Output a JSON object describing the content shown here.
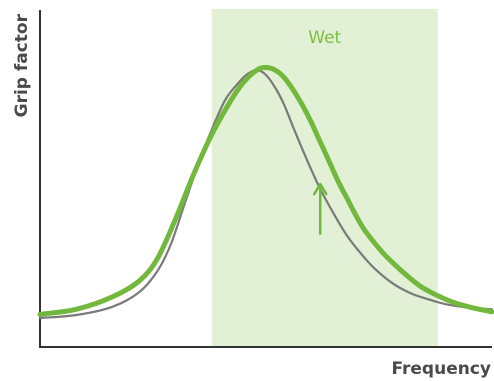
{
  "chart_data": {
    "type": "line",
    "title": "",
    "xlabel": "Frequency",
    "ylabel": "Grip factor",
    "xlim": [
      0,
      100
    ],
    "ylim": [
      0,
      100
    ],
    "grid": false,
    "legend": "none",
    "shaded_region": {
      "label": "Wet",
      "x_start": 38,
      "x_end": 88,
      "color": "#e2f0d6",
      "label_color": "#7cbf3f"
    },
    "series": [
      {
        "color": "#7a7a7a",
        "emphasis": "thin",
        "x": [
          0,
          8,
          16,
          22,
          26,
          29,
          32,
          35,
          38,
          41,
          44,
          46,
          48,
          50,
          52,
          54,
          56,
          59,
          62,
          65,
          68,
          71,
          74,
          78,
          82,
          86,
          90,
          95,
          100
        ],
        "y": [
          0,
          1.2,
          4.5,
          10.5,
          19,
          30,
          46,
          62,
          76,
          88,
          95,
          98.5,
          100,
          98,
          93,
          86,
          77,
          64,
          52,
          42,
          33,
          26,
          20,
          14,
          10,
          7.5,
          5.5,
          4.2,
          3.5
        ]
      },
      {
        "color": "#72b83d",
        "emphasis": "bold",
        "x": [
          0,
          8,
          16,
          22,
          26,
          30,
          34,
          38,
          42,
          45,
          48,
          50,
          52,
          54,
          56,
          58,
          60,
          62,
          64,
          66,
          68,
          70,
          72,
          76,
          80,
          84,
          88,
          92,
          96,
          100
        ],
        "y": [
          1.5,
          3.5,
          8.5,
          15,
          24,
          40,
          58,
          74,
          87,
          95,
          100,
          101,
          100,
          97,
          92,
          86,
          79,
          71,
          63,
          55,
          48,
          41,
          35,
          26,
          19,
          13,
          9,
          6,
          4,
          2.5
        ]
      }
    ],
    "annotations": [
      {
        "type": "arrow",
        "direction": "up",
        "x": 62,
        "y_from": 34,
        "y_to": 54,
        "color": "#72b83d"
      }
    ]
  }
}
